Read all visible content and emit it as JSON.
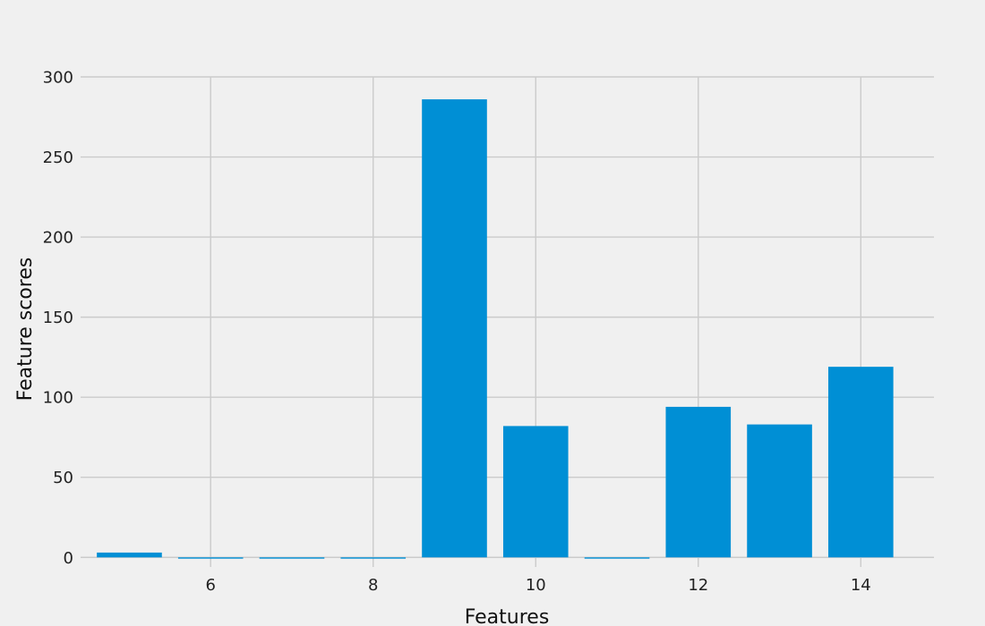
{
  "chart_data": {
    "type": "bar",
    "title": "",
    "xlabel": "Features",
    "ylabel": "Feature scores",
    "x": [
      5,
      6,
      7,
      8,
      9,
      10,
      11,
      12,
      13,
      14
    ],
    "values": [
      3,
      -0.8,
      -0.8,
      -0.8,
      286,
      82,
      -0.8,
      94,
      83,
      119
    ],
    "xticks": [
      6,
      8,
      10,
      12,
      14
    ],
    "yticks": [
      0,
      50,
      100,
      150,
      200,
      250,
      300
    ],
    "xlim": [
      4.4,
      14.9
    ],
    "ylim": [
      -6,
      300
    ],
    "bar_width": 0.8,
    "grid": true,
    "bar_color": "#008fd5",
    "background_color": "#f0f0f0",
    "grid_color": "#cbcbcb"
  }
}
